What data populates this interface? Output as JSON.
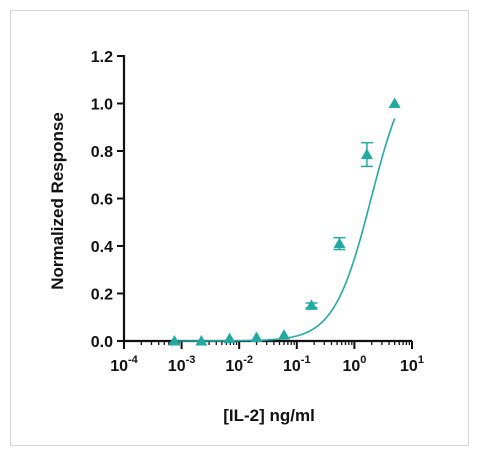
{
  "chart_data": {
    "type": "scatter",
    "title": "",
    "xlabel": "[IL-2] ng/ml",
    "ylabel": "Normalized Response",
    "x_scale": "log",
    "xlim": [
      0.0001,
      10
    ],
    "ylim": [
      0,
      1.2
    ],
    "y_ticks": [
      "0.0",
      "0.2",
      "0.4",
      "0.6",
      "0.8",
      "1.0",
      "1.2"
    ],
    "x_ticks": [
      {
        "base": "10",
        "exp": "-4"
      },
      {
        "base": "10",
        "exp": "-3"
      },
      {
        "base": "10",
        "exp": "-2"
      },
      {
        "base": "10",
        "exp": "-1"
      },
      {
        "base": "10",
        "exp": "0"
      },
      {
        "base": "10",
        "exp": "1"
      }
    ],
    "grid": false,
    "legend": "none",
    "marker": "triangle",
    "color": "#22aaa1",
    "series": [
      {
        "points": [
          {
            "x": 0.00075,
            "y": 0.0,
            "err": 0.0
          },
          {
            "x": 0.0022,
            "y": 0.0,
            "err": 0.0
          },
          {
            "x": 0.0068,
            "y": 0.01,
            "err": 0.0
          },
          {
            "x": 0.02,
            "y": 0.015,
            "err": 0.0
          },
          {
            "x": 0.06,
            "y": 0.025,
            "err": 0.0
          },
          {
            "x": 0.18,
            "y": 0.15,
            "err": 0.01
          },
          {
            "x": 0.55,
            "y": 0.41,
            "err": 0.025
          },
          {
            "x": 1.65,
            "y": 0.785,
            "err": 0.05
          },
          {
            "x": 5.0,
            "y": 1.0,
            "err": 0.0
          }
        ],
        "fit": {
          "type": "4PL",
          "bottom": 0.0,
          "top": 1.2,
          "ec50": 1.95,
          "hill": 1.35
        }
      }
    ]
  }
}
